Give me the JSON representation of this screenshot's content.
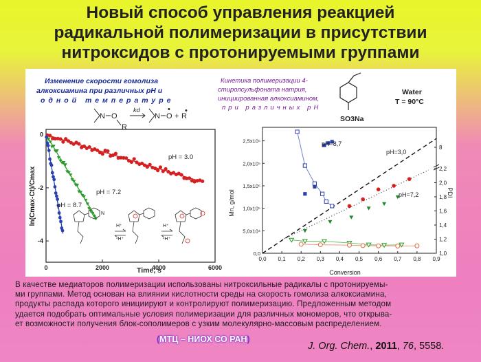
{
  "title": {
    "lines": [
      "Новый способ управления реакцией",
      "радикальной полимеризации в присутствии",
      "нитроксидов с протонируемыми группами"
    ]
  },
  "left_panel": {
    "heading_lines": [
      "Изменение скорости гомолиза",
      "алкоксиамина при различных pH и",
      "одной температуре"
    ],
    "scheme": {
      "k_label": "kd",
      "nitroxide_N": "N",
      "alkyl_R": "R",
      "O": "O",
      "plus": "+",
      "dot": "•"
    },
    "ph_hplus": "H⁺",
    "ph_minus": "-H⁺",
    "curve_labels": [
      "pH = 3.0",
      "pH = 7.2",
      "pH = 8.7"
    ]
  },
  "right_panel": {
    "heading_lines": [
      "Кинетика полимеризации 4-",
      "стиролсульфоната натрия,",
      "инициированная алкоксиамином,",
      "при различных pH"
    ],
    "monomer_label": "SO3Na",
    "conditions": [
      "Water",
      "T = 90°C"
    ],
    "series_labels": [
      "pH=8,7",
      "pH=3,0",
      "pH=7,2"
    ]
  },
  "caption_lines": [
    "В качестве медиаторов полимеризации использованы нитроксильные радикалы с протонируемы-",
    "ми группами. Метод основан на влиянии кислотности среды на скорость гомолиза алкоксиамина,",
    "продукты распада которого инициируют и контролируют полимеризацию. Предложенным методом",
    "удается подобрать оптимальные условия полимеризации для различных мономеров, что открыва-",
    "ет возможности получения блок-сополимеров с узким молекулярно-массовым распределением."
  ],
  "organization": "МТЦ – НИОХ СО РАН",
  "reference": {
    "journal": "J. Org. Chem.",
    "year": "2011",
    "volume": "76",
    "pages": "5558."
  },
  "chart_data": [
    {
      "type": "scatter",
      "title": "",
      "xlabel": "Time, s",
      "ylabel": "ln(Cmax-Ct)/Cmax",
      "xlim": [
        0,
        6000
      ],
      "ylim": [
        -4.8,
        0.2
      ],
      "xticks": [
        0,
        2000,
        4000,
        6000
      ],
      "yticks": [
        -4,
        -2,
        0
      ],
      "colors": {
        "pH = 3.0": "#d42020",
        "pH = 7.2": "#2a9a2a",
        "pH = 8.7": "#2a3fb0"
      },
      "series": [
        {
          "name": "pH = 3.0",
          "slope": -0.00032,
          "x_end": 5600,
          "n_points": 60
        },
        {
          "name": "pH = 7.2",
          "slope": -0.00176,
          "x_end": 1800,
          "n_points": 30
        },
        {
          "name": "pH = 8.7",
          "slope": -0.0062,
          "x_end": 600,
          "n_points": 20
        }
      ]
    },
    {
      "type": "scatter",
      "title": "",
      "xlabel": "Conversion",
      "ylabel": "Mn, g/mol",
      "y2label": "PDI",
      "xlim": [
        0,
        0.9
      ],
      "ylim": [
        0,
        28000
      ],
      "xticks": [
        "0,0",
        "0,1",
        "0,2",
        "0,3",
        "0,4",
        "0,5",
        "0,6",
        "0,7",
        "0,8",
        "0,9"
      ],
      "yticks": [
        "0,0",
        "5,0x10⁴",
        "1,0x10⁵",
        "1,5x10⁵",
        "2,0x10⁵",
        "2,5x10⁵"
      ],
      "y2ticks": [
        "1,0",
        "1,2",
        "1,4",
        "1,6",
        "1,8",
        "2,0",
        "2,2",
        "8"
      ],
      "series": [
        {
          "name": "pH=8,7 Mn",
          "x": [
            0.22,
            0.27,
            0.32,
            0.34,
            0.36
          ],
          "y": [
            13200,
            14800,
            24000,
            24500,
            24800
          ]
        },
        {
          "name": "pH=8,7 PDI",
          "x": [
            0.18,
            0.22,
            0.27,
            0.31,
            0.33,
            0.36
          ],
          "y": [
            27000,
            19500,
            15500,
            13200,
            11500,
            10500
          ]
        },
        {
          "name": "pH=3,0 Mn",
          "x": [
            0.45,
            0.52,
            0.6,
            0.68,
            0.76
          ],
          "y": [
            10500,
            12000,
            14200,
            15000,
            16500
          ]
        },
        {
          "name": "pH=7,2 Mn",
          "x": [
            0.15,
            0.22,
            0.35,
            0.46,
            0.55,
            0.63,
            0.7
          ],
          "y": [
            3000,
            5000,
            7000,
            8000,
            10000,
            11000,
            12500
          ]
        }
      ]
    }
  ]
}
